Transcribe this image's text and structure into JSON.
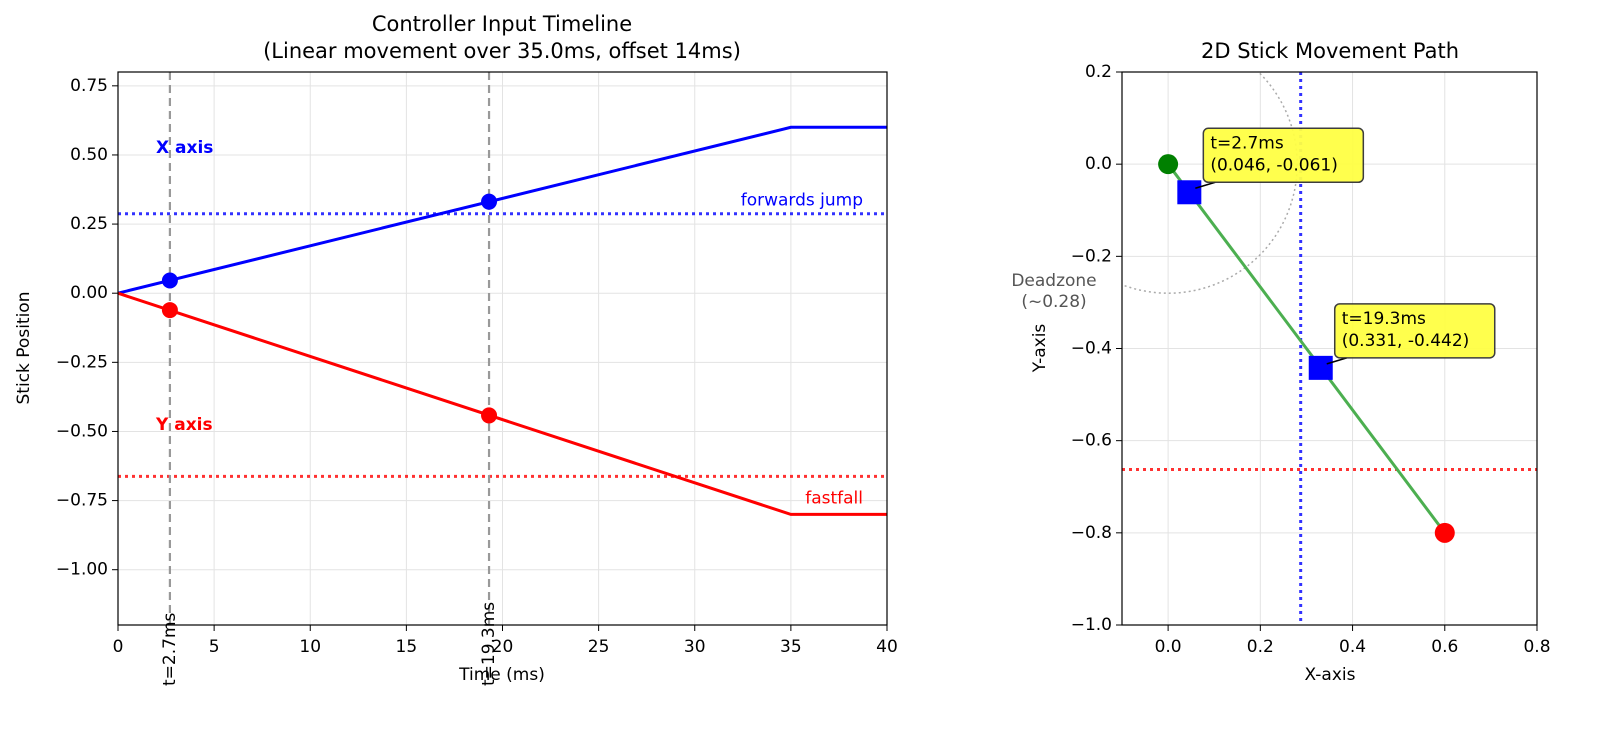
{
  "chart_data": [
    {
      "type": "line",
      "title": "Controller Input Timeline",
      "subtitle": "(Linear movement over 35.0ms, offset 14ms)",
      "x_label": "Time (ms)",
      "y_label": "Stick Position",
      "xlim": [
        0,
        40
      ],
      "xticks": [
        0,
        5,
        10,
        15,
        20,
        25,
        30,
        35,
        40
      ],
      "ylim": [
        -1.2,
        0.8
      ],
      "yticks": [
        {
          "value": -1.0,
          "label": "−1.00"
        },
        {
          "value": -0.75,
          "label": "−0.75"
        },
        {
          "value": -0.5,
          "label": "−0.50"
        },
        {
          "value": -0.25,
          "label": "−0.25"
        },
        {
          "value": 0,
          "label": "0.00"
        },
        {
          "value": 0.25,
          "label": "0.25"
        },
        {
          "value": 0.5,
          "label": "0.50"
        },
        {
          "value": 0.75,
          "label": "0.75"
        }
      ],
      "grid": true,
      "series": [
        {
          "name": "X axis",
          "color": "#0000ff",
          "x": [
            0,
            35,
            40
          ],
          "values": [
            0,
            0.6,
            0.6
          ]
        },
        {
          "name": "Y axis",
          "color": "#ff0000",
          "x": [
            0,
            35,
            40
          ],
          "values": [
            0,
            -0.8,
            -0.8
          ]
        }
      ],
      "events": [
        {
          "x": 2.7,
          "label": "t=2.7ms",
          "values": [
            0.046,
            -0.061
          ]
        },
        {
          "x": 19.3,
          "label": "t=19.3ms",
          "values": [
            0.331,
            -0.442
          ]
        }
      ],
      "thresholds": [
        {
          "label": "forwards jump",
          "value": 0.2875,
          "color": "#0000ff"
        },
        {
          "label": "fastfall",
          "value": -0.6625,
          "color": "#ff0000"
        }
      ]
    },
    {
      "type": "path",
      "title": "2D Stick Movement Path",
      "x_label": "X-axis",
      "y_label": "Y-axis",
      "xlim": [
        -0.1,
        0.8
      ],
      "xticks": [
        {
          "value": 0,
          "label": "0.0"
        },
        0.2,
        0.4,
        0.6,
        0.8
      ],
      "ylim": [
        -1.0,
        0.2
      ],
      "yticks": [
        {
          "value": -1.0,
          "label": "−1.0"
        },
        {
          "value": -0.8,
          "label": "−0.8"
        },
        {
          "value": -0.6,
          "label": "−0.6"
        },
        {
          "value": -0.4,
          "label": "−0.4"
        },
        {
          "value": -0.2,
          "label": "−0.2"
        },
        {
          "value": 0,
          "label": "0.0"
        },
        0.2
      ],
      "grid": true,
      "path": {
        "color": "#4caf50",
        "x": [
          0,
          0.6
        ],
        "values": [
          0,
          -0.8
        ],
        "start_color": "#008000",
        "end_color": "#ff0000"
      },
      "points": {
        "color": "#0000ff",
        "x": [
          0.046,
          0.331
        ],
        "values": [
          -0.061,
          -0.442
        ],
        "labels": [
          [
            "t=2.7ms",
            "(0.046, -0.061)"
          ],
          [
            "t=19.3ms",
            "(0.331, -0.442)"
          ]
        ]
      },
      "deadzone": {
        "radius": 0.28,
        "label": [
          "Deadzone",
          "(~0.28)"
        ]
      },
      "vline": {
        "value": 0.2875,
        "color": "#0000ff"
      },
      "hline": {
        "value": -0.6625,
        "color": "#ff0000"
      }
    }
  ]
}
